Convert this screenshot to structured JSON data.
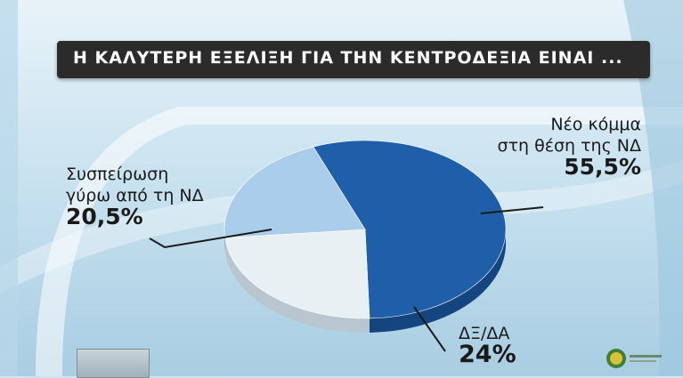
{
  "title": "Η ΚΑΛΥΤΕΡΗ ΕΞΕΛΙΞΗ ΓΙΑ ΤΗΝ ΚΕΝΤΡΟΔΕΞΙΑ ΕΙΝΑΙ ...",
  "colors": {
    "new_party": "#1f5ea8",
    "rally": "#a9cdea",
    "dxda": "#e9f0f4"
  },
  "chart_data": {
    "type": "pie",
    "title": "Η ΚΑΛΥΤΕΡΗ ΕΞΕΛΙΞΗ ΓΙΑ ΤΗΝ ΚΕΝΤΡΟΔΕΞΙΑ ΕΙΝΑΙ ...",
    "slices": [
      {
        "label_line1": "Νέο κόμμα",
        "label_line2": "στη θέση της ΝΔ",
        "value": 55.5,
        "value_label": "55,5%"
      },
      {
        "label_line1": "ΔΞ/ΔΑ",
        "label_line2": "",
        "value": 24,
        "value_label": "24%"
      },
      {
        "label_line1": "Συσπείρωση",
        "label_line2": "γύρω από τη ΝΔ",
        "value": 20.5,
        "value_label": "20,5%"
      }
    ]
  }
}
